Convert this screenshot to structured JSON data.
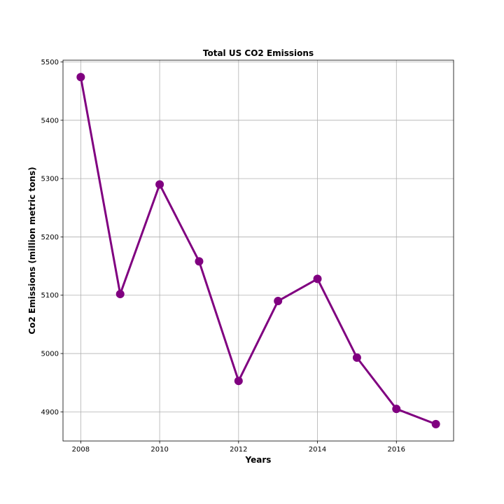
{
  "chart_data": {
    "type": "line",
    "title": "Total US CO2 Emissions",
    "xlabel": "Years",
    "ylabel": "Co2 Emissions (million metric tons)",
    "xlim": [
      2007.55,
      2017.45
    ],
    "ylim": [
      4850,
      5503
    ],
    "xticks": [
      2008,
      2010,
      2012,
      2014,
      2016
    ],
    "yticks": [
      4900,
      5000,
      5100,
      5200,
      5300,
      5400,
      5500
    ],
    "grid": true,
    "series": [
      {
        "color": "#800080",
        "marker": "circle",
        "x": [
          2008,
          2009,
          2010,
          2011,
          2012,
          2013,
          2014,
          2015,
          2016,
          2017
        ],
        "y": [
          5474,
          5102,
          5290,
          5158,
          4953,
          5090,
          5128,
          4993,
          4905,
          4879
        ]
      }
    ]
  }
}
